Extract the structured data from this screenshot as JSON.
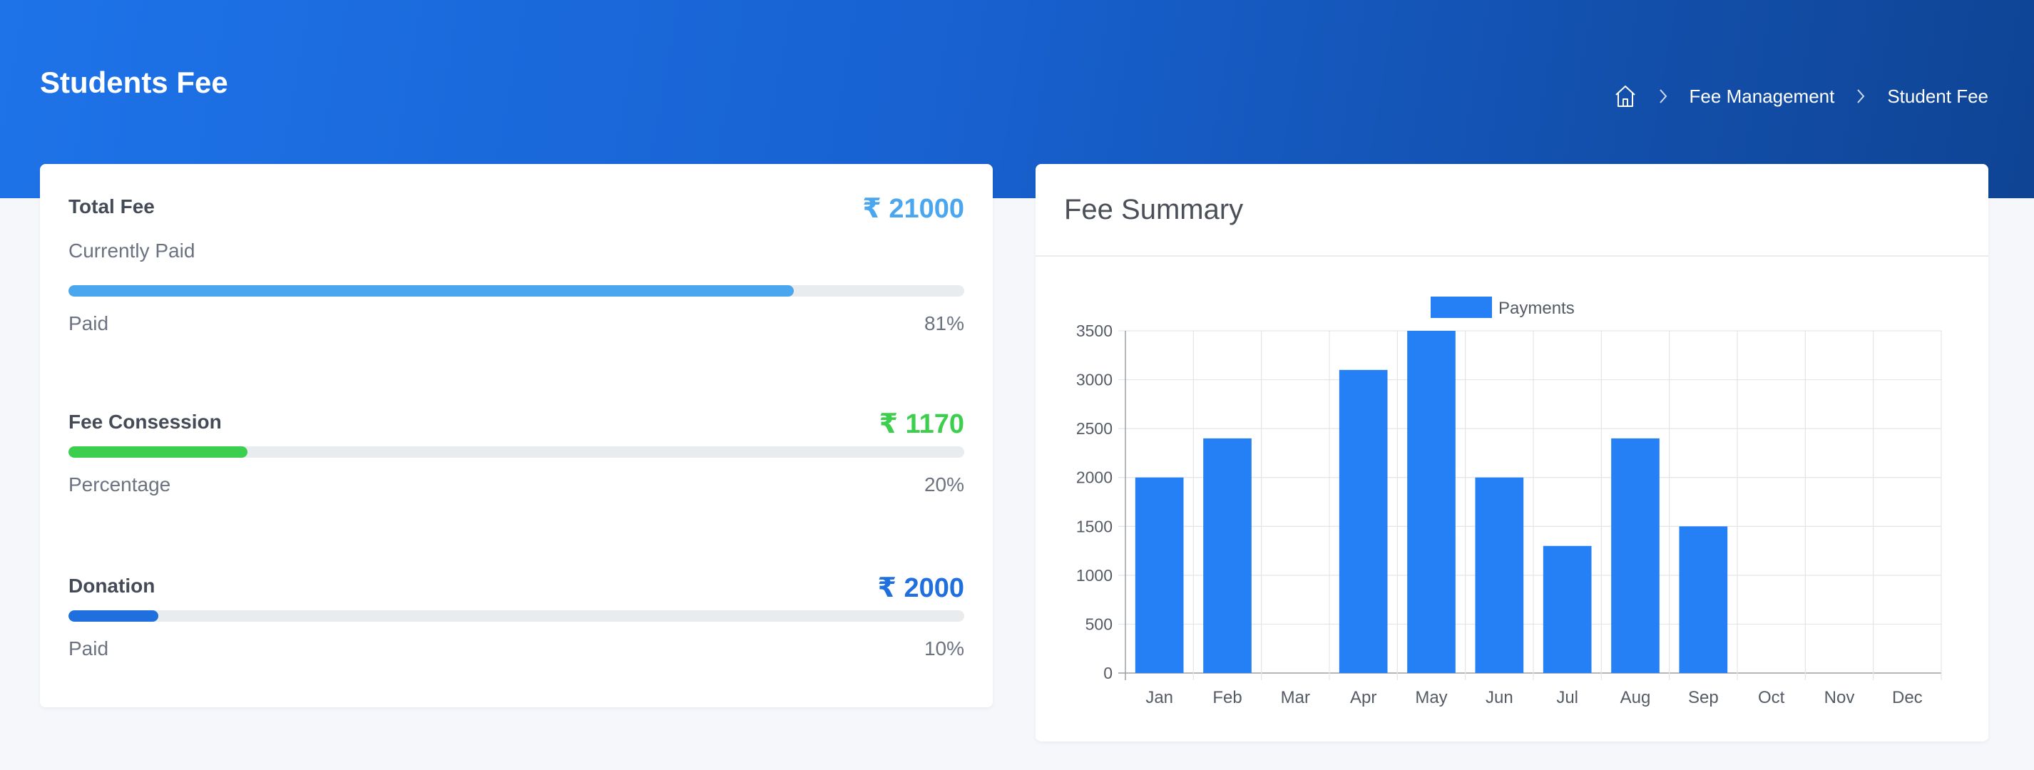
{
  "header": {
    "title": "Students Fee",
    "breadcrumb": [
      "Fee Management",
      "Student Fee"
    ]
  },
  "colors": {
    "header_start": "#1e73e8",
    "header_end": "#0f4494",
    "total_fee": "#4aa6ee",
    "concession": "#3ccf4e",
    "donation": "#1f6fde",
    "chart_bar": "#2680f5"
  },
  "fees": {
    "total": {
      "title": "Total Fee",
      "amount": "₹ 21000",
      "subtitle": "Currently Paid",
      "progress_label": "Paid",
      "progress_value": "81%",
      "progress": 81
    },
    "concession": {
      "title": "Fee Consession",
      "amount": "₹ 1170",
      "progress_label": "Percentage",
      "progress_value": "20%",
      "progress": 20
    },
    "donation": {
      "title": "Donation",
      "amount": "₹ 2000",
      "progress_label": "Paid",
      "progress_value": "10%",
      "progress": 10
    }
  },
  "summary": {
    "title": "Fee Summary"
  },
  "chart_data": {
    "type": "bar",
    "categories": [
      "Jan",
      "Feb",
      "Mar",
      "Apr",
      "May",
      "Jun",
      "Jul",
      "Aug",
      "Sep",
      "Oct",
      "Nov",
      "Dec"
    ],
    "series": [
      {
        "name": "Payments",
        "values": [
          2000,
          2400,
          0,
          3100,
          3500,
          2000,
          1300,
          2400,
          1500,
          0,
          0,
          0
        ]
      }
    ],
    "ylim": [
      0,
      3500
    ],
    "yticks": [
      0,
      500,
      1000,
      1500,
      2000,
      2500,
      3000,
      3500
    ],
    "grid": true,
    "legend": "top-center"
  }
}
